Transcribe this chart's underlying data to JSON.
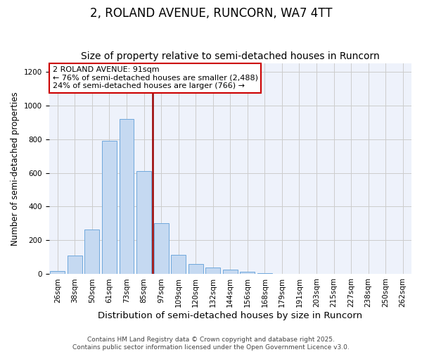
{
  "title": "2, ROLAND AVENUE, RUNCORN, WA7 4TT",
  "subtitle": "Size of property relative to semi-detached houses in Runcorn",
  "xlabel": "Distribution of semi-detached houses by size in Runcorn",
  "ylabel": "Number of semi-detached properties",
  "bins": [
    "26sqm",
    "38sqm",
    "50sqm",
    "61sqm",
    "73sqm",
    "85sqm",
    "97sqm",
    "109sqm",
    "120sqm",
    "132sqm",
    "144sqm",
    "156sqm",
    "168sqm",
    "179sqm",
    "191sqm",
    "203sqm",
    "215sqm",
    "227sqm",
    "238sqm",
    "250sqm",
    "262sqm"
  ],
  "counts": [
    20,
    110,
    265,
    790,
    920,
    610,
    300,
    115,
    60,
    40,
    27,
    15,
    5,
    2,
    0,
    0,
    0,
    0,
    0,
    0,
    0
  ],
  "bar_color": "#c5d9f1",
  "bar_edge_color": "#6fa8dc",
  "marker_bin_index": 6,
  "marker_color": "#990000",
  "annotation_title": "2 ROLAND AVENUE: 91sqm",
  "annotation_line1": "← 76% of semi-detached houses are smaller (2,488)",
  "annotation_line2": "24% of semi-detached houses are larger (766) →",
  "annotation_box_color": "#ffffff",
  "annotation_box_edge": "#cc0000",
  "footer_line1": "Contains HM Land Registry data © Crown copyright and database right 2025.",
  "footer_line2": "Contains public sector information licensed under the Open Government Licence v3.0.",
  "ylim": [
    0,
    1250
  ],
  "yticks": [
    0,
    200,
    400,
    600,
    800,
    1000,
    1200
  ],
  "title_fontsize": 12,
  "subtitle_fontsize": 10,
  "xlabel_fontsize": 9.5,
  "ylabel_fontsize": 8.5,
  "tick_fontsize": 7.5,
  "footer_fontsize": 6.5,
  "annotation_fontsize": 8
}
